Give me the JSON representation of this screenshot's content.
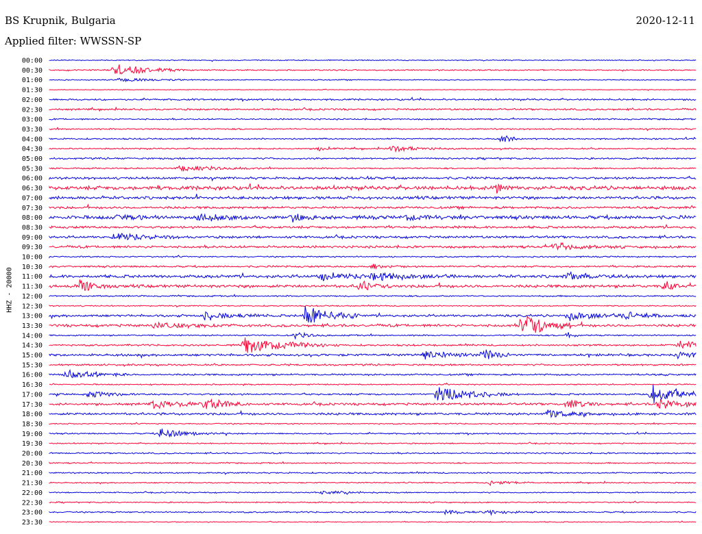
{
  "header": {
    "station": "BS Krupnik, Bulgaria",
    "filter": "Applied filter: WWSSN-SP",
    "date": "2020-12-11"
  },
  "chart_data": {
    "type": "line",
    "title": "BS Krupnik, Bulgaria",
    "subtitle": "Applied filter: WWSSN-SP",
    "ylabel": "HHZ - 20000",
    "colors": [
      "#0000dd",
      "#ff0033"
    ],
    "row_labels": [
      "00:00",
      "00:30",
      "01:00",
      "01:30",
      "02:00",
      "02:30",
      "03:00",
      "03:30",
      "04:00",
      "04:30",
      "05:00",
      "05:30",
      "06:00",
      "06:30",
      "07:00",
      "07:30",
      "08:00",
      "08:30",
      "09:00",
      "09:30",
      "10:00",
      "10:30",
      "11:00",
      "11:30",
      "12:00",
      "12:30",
      "13:00",
      "13:30",
      "14:00",
      "14:30",
      "15:00",
      "15:30",
      "16:00",
      "16:30",
      "17:00",
      "17:30",
      "18:00",
      "18:30",
      "19:00",
      "19:30",
      "20:00",
      "20:30",
      "21:00",
      "21:30",
      "22:00",
      "22:30",
      "23:00",
      "23:30"
    ],
    "noise": [
      0.8,
      1,
      0.8,
      0.5,
      1.5,
      1.5,
      1.2,
      1.2,
      1.2,
      1.2,
      1.5,
      1.2,
      2,
      3.2,
      2.5,
      2,
      3,
      2,
      2,
      2,
      1.2,
      1.5,
      2.5,
      2.5,
      1.2,
      1,
      2,
      2.2,
      1.2,
      1.5,
      2,
      1.5,
      1.5,
      1,
      1.5,
      2,
      2,
      1,
      1.2,
      1,
      1.2,
      1,
      1.2,
      1,
      1,
      1,
      1.2,
      0.8
    ],
    "events": [
      {
        "row": 1,
        "t": 0.1,
        "amp": 10,
        "dur": 0.05
      },
      {
        "row": 2,
        "t": 0.105,
        "amp": 3,
        "dur": 0.05
      },
      {
        "row": 8,
        "t": 0.7,
        "amp": 10,
        "dur": 0.01
      },
      {
        "row": 9,
        "t": 0.415,
        "amp": 3,
        "dur": 0.02
      },
      {
        "row": 9,
        "t": 0.53,
        "amp": 5,
        "dur": 0.04
      },
      {
        "row": 11,
        "t": 0.2,
        "amp": 5,
        "dur": 0.05
      },
      {
        "row": 12,
        "t": 0.49,
        "amp": 4,
        "dur": 0.005
      },
      {
        "row": 13,
        "t": 0.17,
        "amp": 5,
        "dur": 0.005
      },
      {
        "row": 13,
        "t": 0.69,
        "amp": 9,
        "dur": 0.01
      },
      {
        "row": 16,
        "t": 0.1,
        "amp": 6,
        "dur": 0.03
      },
      {
        "row": 16,
        "t": 0.23,
        "amp": 8,
        "dur": 0.03
      },
      {
        "row": 16,
        "t": 0.375,
        "amp": 9,
        "dur": 0.02
      },
      {
        "row": 16,
        "t": 0.55,
        "amp": 5,
        "dur": 0.02
      },
      {
        "row": 18,
        "t": 0.1,
        "amp": 7,
        "dur": 0.04
      },
      {
        "row": 19,
        "t": 0.78,
        "amp": 6,
        "dur": 0.04
      },
      {
        "row": 21,
        "t": 0.5,
        "amp": 4,
        "dur": 0.02
      },
      {
        "row": 22,
        "t": 0.42,
        "amp": 6,
        "dur": 0.04
      },
      {
        "row": 22,
        "t": 0.5,
        "amp": 7,
        "dur": 0.05
      },
      {
        "row": 22,
        "t": 0.8,
        "amp": 6,
        "dur": 0.04
      },
      {
        "row": 23,
        "t": 0.045,
        "amp": 14,
        "dur": 0.02
      },
      {
        "row": 23,
        "t": 0.48,
        "amp": 8,
        "dur": 0.02
      },
      {
        "row": 23,
        "t": 0.95,
        "amp": 11,
        "dur": 0.01
      },
      {
        "row": 26,
        "t": 0.24,
        "amp": 7,
        "dur": 0.04
      },
      {
        "row": 26,
        "t": 0.395,
        "amp": 20,
        "dur": 0.035
      },
      {
        "row": 26,
        "t": 0.8,
        "amp": 8,
        "dur": 0.04
      },
      {
        "row": 26,
        "t": 0.89,
        "amp": 6,
        "dur": 0.04
      },
      {
        "row": 27,
        "t": 0.16,
        "amp": 6,
        "dur": 0.05
      },
      {
        "row": 27,
        "t": 0.73,
        "amp": 28,
        "dur": 0.03
      },
      {
        "row": 28,
        "t": 0.38,
        "amp": 5,
        "dur": 0.02
      },
      {
        "row": 28,
        "t": 0.8,
        "amp": 6,
        "dur": 0.01
      },
      {
        "row": 29,
        "t": 0.3,
        "amp": 14,
        "dur": 0.06
      },
      {
        "row": 29,
        "t": 0.97,
        "amp": 9,
        "dur": 0.03
      },
      {
        "row": 30,
        "t": 0.58,
        "amp": 8,
        "dur": 0.03
      },
      {
        "row": 30,
        "t": 0.67,
        "amp": 10,
        "dur": 0.02
      },
      {
        "row": 30,
        "t": 0.97,
        "amp": 7,
        "dur": 0.03
      },
      {
        "row": 32,
        "t": 0.025,
        "amp": 8,
        "dur": 0.04
      },
      {
        "row": 34,
        "t": 0.06,
        "amp": 6,
        "dur": 0.03
      },
      {
        "row": 34,
        "t": 0.6,
        "amp": 14,
        "dur": 0.05
      },
      {
        "row": 34,
        "t": 0.93,
        "amp": 20,
        "dur": 0.04
      },
      {
        "row": 35,
        "t": 0.16,
        "amp": 6,
        "dur": 0.06
      },
      {
        "row": 35,
        "t": 0.24,
        "amp": 9,
        "dur": 0.03
      },
      {
        "row": 35,
        "t": 0.8,
        "amp": 8,
        "dur": 0.02
      },
      {
        "row": 35,
        "t": 0.94,
        "amp": 8,
        "dur": 0.04
      },
      {
        "row": 36,
        "t": 0.77,
        "amp": 8,
        "dur": 0.03
      },
      {
        "row": 38,
        "t": 0.17,
        "amp": 8,
        "dur": 0.04
      },
      {
        "row": 43,
        "t": 0.68,
        "amp": 4,
        "dur": 0.03
      },
      {
        "row": 44,
        "t": 0.42,
        "amp": 3,
        "dur": 0.04
      },
      {
        "row": 46,
        "t": 0.61,
        "amp": 4,
        "dur": 0.03
      },
      {
        "row": 46,
        "t": 0.68,
        "amp": 6,
        "dur": 0.02
      }
    ]
  }
}
